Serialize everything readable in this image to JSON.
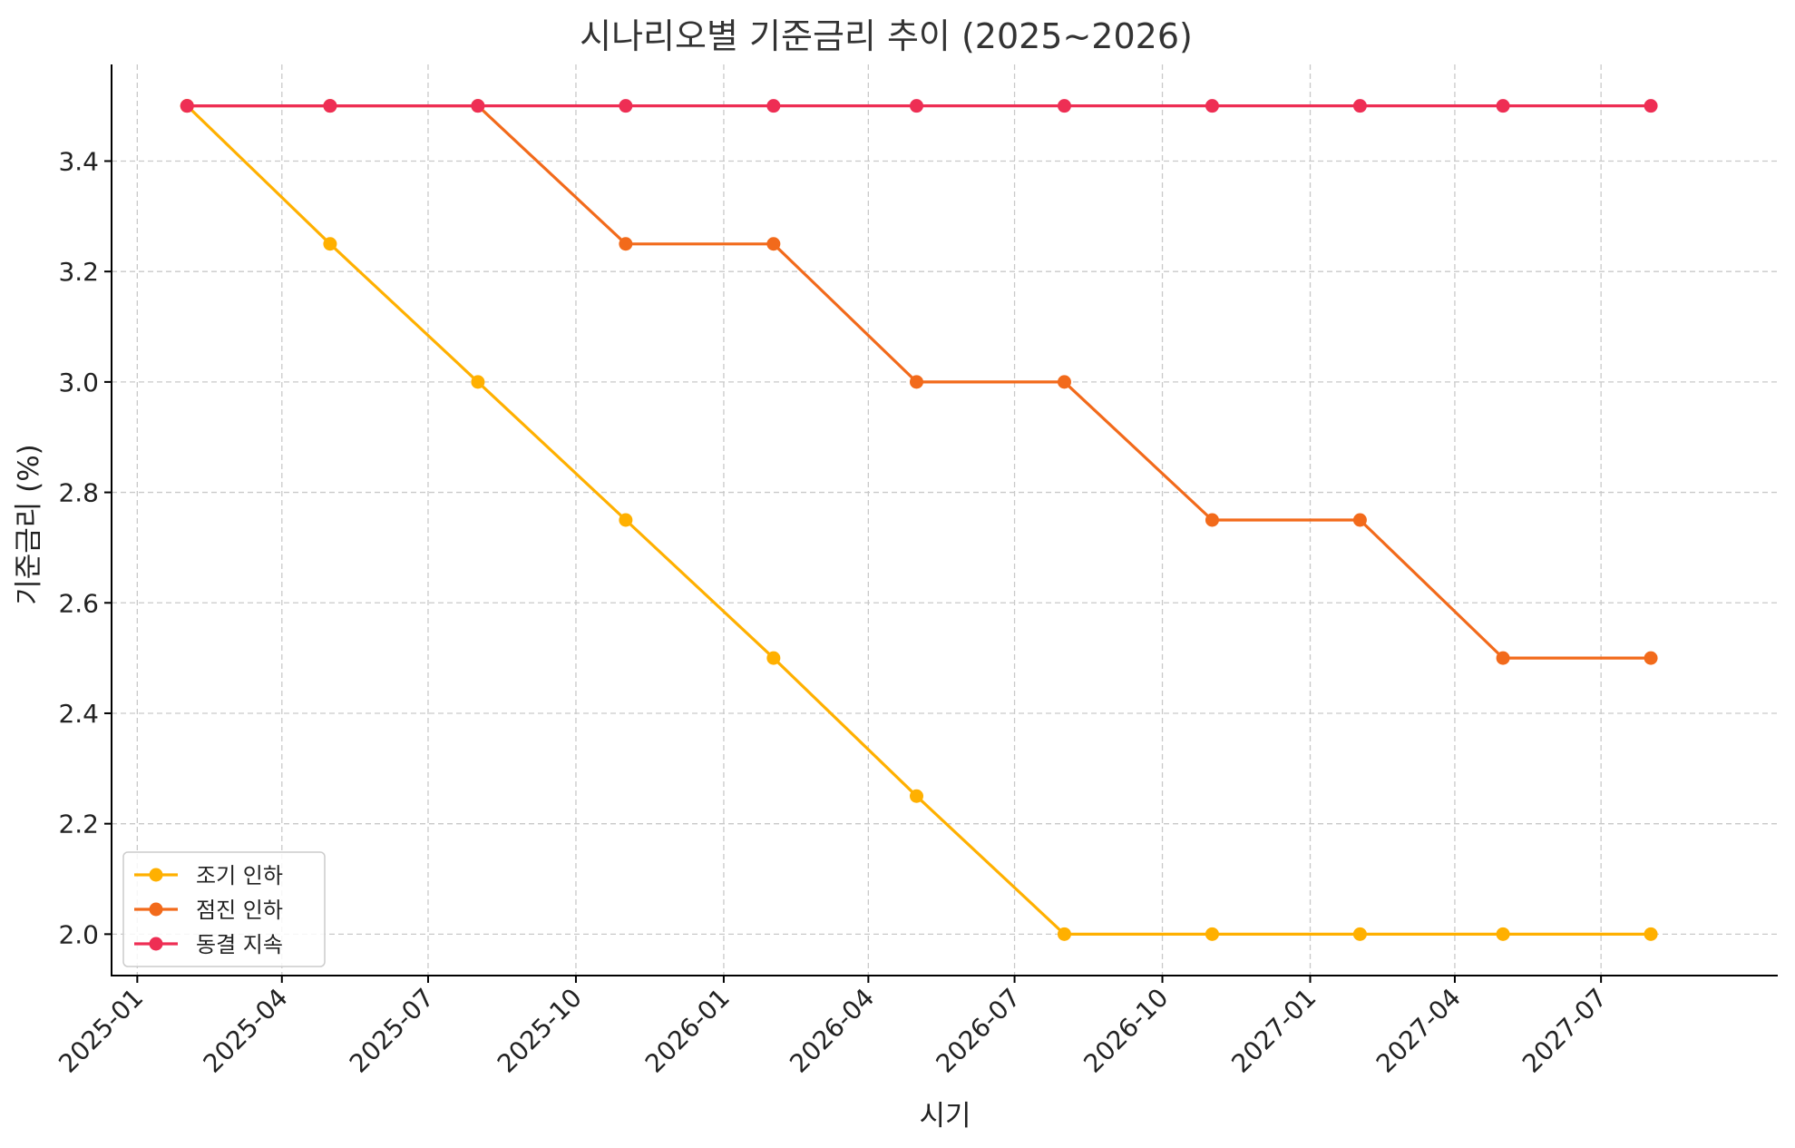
{
  "chart_data": {
    "type": "line",
    "title": "시나리오별 기준금리 추이 (2025~2026)",
    "xlabel": "시기",
    "ylabel": "기준금리 (%)",
    "x_dates": [
      "2025-02",
      "2025-05",
      "2025-08",
      "2025-11",
      "2026-02",
      "2026-05",
      "2026-08",
      "2026-11",
      "2027-02",
      "2027-05",
      "2027-08"
    ],
    "x_tick_labels": [
      "2025-01",
      "2025-04",
      "2025-07",
      "2025-10",
      "2026-01",
      "2026-04",
      "2026-07",
      "2026-10",
      "2027-01",
      "2027-04",
      "2027-07"
    ],
    "y_ticks": [
      2.0,
      2.2,
      2.4,
      2.6,
      2.8,
      3.0,
      3.2,
      3.4
    ],
    "ylim": [
      1.925,
      3.575
    ],
    "xlim": [
      "2024-12-16",
      "2027-10-19"
    ],
    "grid": true,
    "legend_position": "lower-left",
    "series": [
      {
        "name": "조기 인하",
        "color": "#FFB000",
        "values": [
          3.5,
          3.25,
          3.0,
          2.75,
          2.5,
          2.25,
          2.0,
          2.0,
          2.0,
          2.0,
          2.0
        ]
      },
      {
        "name": "점진 인하",
        "color": "#F26A1B",
        "values": [
          3.5,
          3.5,
          3.5,
          3.25,
          3.25,
          3.0,
          3.0,
          2.75,
          2.75,
          2.5,
          2.5
        ]
      },
      {
        "name": "동결 지속",
        "color": "#EE2E54",
        "values": [
          3.5,
          3.5,
          3.5,
          3.5,
          3.5,
          3.5,
          3.5,
          3.5,
          3.5,
          3.5,
          3.5
        ]
      }
    ]
  }
}
